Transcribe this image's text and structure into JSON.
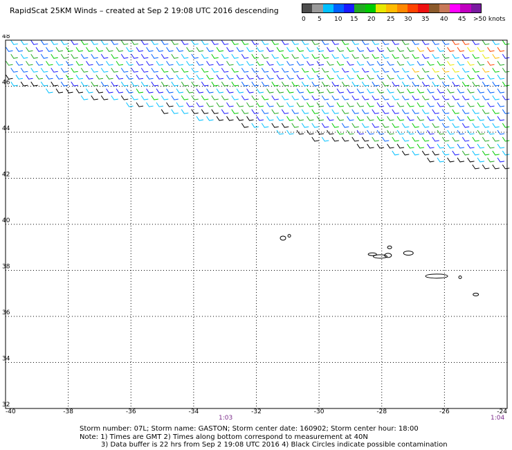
{
  "title": "RapidScat 25KM Winds – created at Sep  2 19:08 UTC 2016 descending",
  "colorbar": {
    "colors": [
      "#4d4d4d",
      "#9a9a9a",
      "#00c0ff",
      "#0060ff",
      "#1a1aff",
      "#22aa22",
      "#00cc00",
      "#e8e800",
      "#ffbb00",
      "#ff8800",
      "#ff4400",
      "#ee1111",
      "#8b5a2b",
      "#c87858",
      "#ff00ff",
      "#c000c0",
      "#7a1aa0"
    ],
    "labels": [
      "0",
      "5",
      "10",
      "15",
      "20",
      "25",
      "30",
      "35",
      "40",
      "45",
      ">50 knots"
    ]
  },
  "map": {
    "lon_range": [
      -40,
      -24
    ],
    "lat_range": [
      32,
      48
    ],
    "lon_ticks": [
      "-40",
      "-38",
      "-36",
      "-34",
      "-32",
      "-30",
      "-28",
      "-26",
      "-24"
    ],
    "lat_ticks": [
      "48",
      "46",
      "44",
      "42",
      "40",
      "38",
      "36",
      "34",
      "32"
    ],
    "time_labels": {
      "left": "1:03",
      "right": "1:04"
    }
  },
  "notes": {
    "line1": "Storm number: 07L;  Storm name: GASTON;  Storm center date: 160902;  Storm center hour: 18:00",
    "line2": "Note: 1) Times are GMT  2) Times along bottom correspond to measurement at 40N",
    "line3": "3) Data buffer is 22 hrs from Sep  2 19:08 UTC 2016   4) Black Circles indicate possible contamination"
  }
}
